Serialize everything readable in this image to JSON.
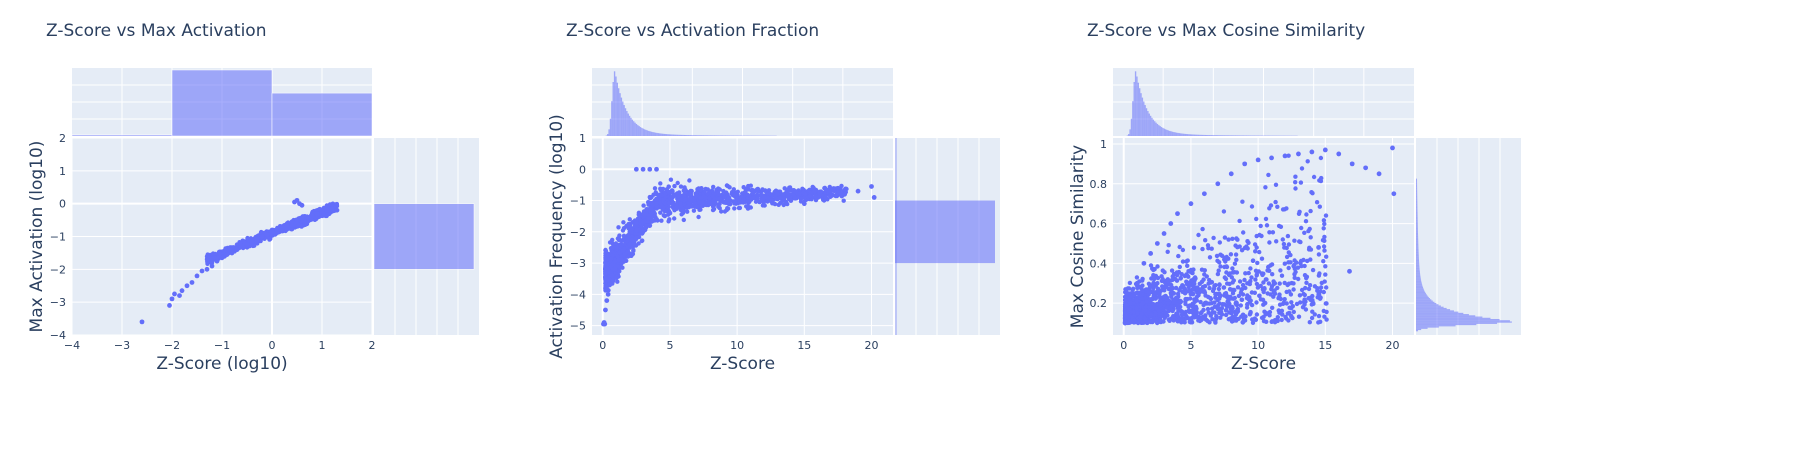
{
  "chart_data": [
    {
      "type": "scatter",
      "title": "Z-Score vs Max Activation",
      "xlabel": "Z-Score (log10)",
      "ylabel": "Max Activation (log10)",
      "xlim": [
        -4,
        2
      ],
      "ylim": [
        -4,
        2
      ],
      "xticks": [
        -4,
        -3,
        -2,
        -1,
        0,
        1,
        2
      ],
      "yticks": [
        -4,
        -3,
        -2,
        -1,
        0,
        1,
        2
      ],
      "grid": true,
      "marginal_x_histogram": {
        "bins": [
          [
            -4,
            -2,
            0.02
          ],
          [
            -2,
            0,
            1.0
          ],
          [
            0,
            2,
            0.65
          ]
        ]
      },
      "marginal_y_histogram": {
        "bins": [
          [
            -4,
            -2,
            0.0
          ],
          [
            -2,
            0,
            1.0
          ],
          [
            0,
            2,
            0.0
          ]
        ]
      },
      "series": [
        {
          "color": "#636efa",
          "points": [
            [
              -2.6,
              -3.6
            ],
            [
              -2.05,
              -3.1
            ],
            [
              -2.0,
              -2.9
            ],
            [
              -1.95,
              -2.75
            ],
            [
              -1.85,
              -2.8
            ],
            [
              -1.8,
              -2.65
            ],
            [
              -1.7,
              -2.5
            ],
            [
              -1.6,
              -2.4
            ],
            [
              -1.5,
              -2.2
            ],
            [
              -1.4,
              -2.05
            ],
            [
              -1.3,
              -2.0
            ],
            [
              -1.2,
              -1.9
            ],
            [
              -1.1,
              -1.75
            ],
            [
              -1.0,
              -1.65
            ],
            [
              -0.9,
              -1.55
            ],
            [
              -0.8,
              -1.5
            ],
            [
              -0.7,
              -1.4
            ],
            [
              -0.6,
              -1.3
            ],
            [
              -0.5,
              -1.25
            ],
            [
              -0.4,
              -1.15
            ],
            [
              -0.3,
              -1.1
            ],
            [
              -0.2,
              -1.0
            ],
            [
              -0.1,
              -0.95
            ],
            [
              0.0,
              -0.85
            ],
            [
              0.1,
              -0.8
            ],
            [
              0.2,
              -0.7
            ],
            [
              0.3,
              -0.65
            ],
            [
              0.4,
              -0.55
            ],
            [
              0.5,
              -0.5
            ],
            [
              0.6,
              -0.45
            ],
            [
              0.7,
              -0.4
            ],
            [
              0.8,
              -0.35
            ],
            [
              0.9,
              -0.3
            ],
            [
              1.0,
              -0.25
            ],
            [
              1.1,
              -0.2
            ],
            [
              1.2,
              -0.15
            ],
            [
              1.3,
              -0.2
            ],
            [
              0.45,
              0.05
            ],
            [
              0.5,
              0.1
            ],
            [
              0.55,
              0.0
            ],
            [
              0.6,
              -0.05
            ]
          ]
        }
      ]
    },
    {
      "type": "scatter",
      "title": "Z-Score vs Activation Fraction",
      "xlabel": "Z-Score",
      "ylabel": "Activation Frequency (log10)",
      "xlim": [
        -0.8,
        21.6
      ],
      "ylim": [
        -5.3,
        1
      ],
      "xticks": [
        0,
        5,
        10,
        15,
        20
      ],
      "yticks": [
        -5,
        -4,
        -3,
        -2,
        -1,
        0,
        1
      ],
      "grid": true,
      "marginal_x_histogram": {
        "peak_at": 0.9,
        "shape": "right-skewed"
      },
      "marginal_y_histogram": {
        "bins": [
          [
            -3,
            -1,
            1.0
          ]
        ]
      },
      "series": [
        {
          "color": "#636efa",
          "points": [
            [
              0.05,
              -4.95
            ],
            [
              0.1,
              -4.9
            ],
            [
              0.15,
              -4.95
            ],
            [
              0.2,
              -4.5
            ],
            [
              0.3,
              -4.2
            ],
            [
              0.4,
              -4.0
            ],
            [
              0.5,
              -3.7
            ],
            [
              0.7,
              -3.4
            ],
            [
              0.9,
              -3.2
            ],
            [
              1.2,
              -2.9
            ],
            [
              1.5,
              -2.6
            ],
            [
              2.0,
              -2.4
            ],
            [
              2.5,
              -2.2
            ],
            [
              3.0,
              -2.0
            ],
            [
              3.5,
              -1.8
            ],
            [
              4.0,
              -1.6
            ],
            [
              5.0,
              -1.4
            ],
            [
              6.0,
              -1.3
            ],
            [
              7.0,
              -1.2
            ],
            [
              8.0,
              -1.1
            ],
            [
              9.0,
              -1.05
            ],
            [
              10.0,
              -1.0
            ],
            [
              11.0,
              -0.95
            ],
            [
              12.0,
              -0.9
            ],
            [
              13.0,
              -0.95
            ],
            [
              14.0,
              -1.0
            ],
            [
              15.0,
              -1.1
            ],
            [
              16.0,
              -0.9
            ],
            [
              17.0,
              -0.85
            ],
            [
              18.0,
              -0.8
            ],
            [
              19.0,
              -0.7
            ],
            [
              20.0,
              -0.55
            ],
            [
              20.2,
              -0.9
            ],
            [
              2.5,
              0.0
            ],
            [
              3.0,
              0.0
            ],
            [
              3.5,
              0.0
            ],
            [
              4.0,
              0.0
            ]
          ]
        }
      ]
    },
    {
      "type": "scatter",
      "title": "Z-Score vs Max Cosine Similarity",
      "xlabel": "Z-Score",
      "ylabel": "Max Cosine Similarity",
      "xlim": [
        -0.8,
        21.6
      ],
      "ylim": [
        0.04,
        1.03
      ],
      "xticks": [
        0,
        5,
        10,
        15,
        20
      ],
      "yticks": [
        0.2,
        0.4,
        0.6,
        0.8,
        1
      ],
      "grid": true,
      "marginal_x_histogram": {
        "peak_at": 0.9,
        "shape": "right-skewed"
      },
      "marginal_y_histogram": {
        "peak_at": 0.11,
        "shape": "right-skewed"
      },
      "series": [
        {
          "color": "#636efa",
          "points": [
            [
              0.1,
              0.1
            ],
            [
              0.5,
              0.2
            ],
            [
              1.0,
              0.3
            ],
            [
              1.5,
              0.4
            ],
            [
              2.0,
              0.45
            ],
            [
              2.5,
              0.5
            ],
            [
              3.0,
              0.55
            ],
            [
              3.5,
              0.6
            ],
            [
              4.0,
              0.65
            ],
            [
              5.0,
              0.7
            ],
            [
              6.0,
              0.75
            ],
            [
              7.0,
              0.8
            ],
            [
              8.0,
              0.85
            ],
            [
              9.0,
              0.9
            ],
            [
              10.0,
              0.92
            ],
            [
              11.0,
              0.93
            ],
            [
              12.0,
              0.94
            ],
            [
              13.0,
              0.95
            ],
            [
              14.0,
              0.96
            ],
            [
              15.0,
              0.97
            ],
            [
              16.0,
              0.95
            ],
            [
              17.0,
              0.9
            ],
            [
              18.0,
              0.88
            ],
            [
              19.0,
              0.85
            ],
            [
              20.0,
              0.98
            ],
            [
              20.1,
              0.75
            ],
            [
              16.8,
              0.36
            ],
            [
              14.5,
              0.48
            ],
            [
              10.5,
              0.2
            ]
          ]
        }
      ]
    }
  ]
}
